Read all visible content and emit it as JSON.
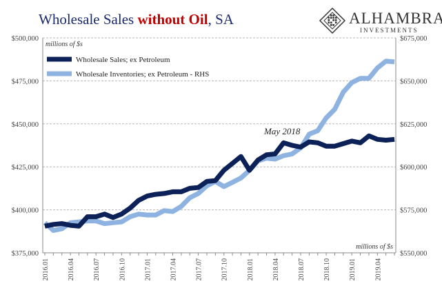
{
  "title": {
    "main_part1": "Wholesale Sales ",
    "accent": "without Oil",
    "main_part2": ", SA"
  },
  "logo": {
    "name": "ALHAMBRA",
    "sub": "INVESTMENTS"
  },
  "chart_data": {
    "type": "line",
    "unit_label_top_left": "millions of $s",
    "unit_label_bottom_right": "millions of $s",
    "annotation": "May 2018",
    "grid": true,
    "legend_placement": "top-left",
    "y_left": {
      "min": 375000,
      "max": 500000,
      "ticks": [
        "$375,000",
        "$400,000",
        "$425,000",
        "$450,000",
        "$475,000",
        "$500,000"
      ]
    },
    "y_right": {
      "min": 550000,
      "max": 675000,
      "ticks": [
        "$550,000",
        "$575,000",
        "$600,000",
        "$625,000",
        "$650,000",
        "$675,000"
      ]
    },
    "x_tick_labels": [
      "2016.01",
      "2016.04",
      "2016.07",
      "2016.10",
      "2017.01",
      "2017.04",
      "2017.07",
      "2017.10",
      "2018.01",
      "2018.04",
      "2018.07",
      "2018.10",
      "2019.01",
      "2019.04"
    ],
    "x": [
      "2016.01",
      "2016.02",
      "2016.03",
      "2016.04",
      "2016.05",
      "2016.06",
      "2016.07",
      "2016.08",
      "2016.09",
      "2016.10",
      "2016.11",
      "2016.12",
      "2017.01",
      "2017.02",
      "2017.03",
      "2017.04",
      "2017.05",
      "2017.06",
      "2017.07",
      "2017.08",
      "2017.09",
      "2017.10",
      "2017.11",
      "2017.12",
      "2018.01",
      "2018.02",
      "2018.03",
      "2018.04",
      "2018.05",
      "2018.06",
      "2018.07",
      "2018.08",
      "2018.09",
      "2018.10",
      "2018.11",
      "2018.12",
      "2019.01",
      "2019.02",
      "2019.03",
      "2019.04",
      "2019.05",
      "2019.06"
    ],
    "series": [
      {
        "name": "Wholesale Sales; ex Petroleum",
        "axis": "left",
        "color": "#0c2157",
        "values": [
          390500,
          391500,
          392000,
          391000,
          390500,
          396000,
          396000,
          397500,
          395500,
          397500,
          401000,
          405500,
          408000,
          409000,
          409500,
          410500,
          410500,
          412500,
          413000,
          416500,
          417000,
          423000,
          427000,
          431000,
          423000,
          429000,
          432000,
          432500,
          439000,
          437500,
          436500,
          439500,
          439000,
          437000,
          437000,
          438500,
          440000,
          439000,
          443000,
          441000,
          440500,
          441000
        ]
      },
      {
        "name": "Wholesale Inventories; ex Petroleum - RHS",
        "axis": "right",
        "color": "#8fb3e0",
        "values": [
          567500,
          563000,
          564000,
          567500,
          568000,
          568500,
          568500,
          567000,
          567500,
          568000,
          571000,
          572500,
          572000,
          572000,
          574500,
          574000,
          577000,
          582000,
          584500,
          589000,
          591500,
          588500,
          591000,
          593500,
          598000,
          603500,
          605000,
          604500,
          606500,
          607500,
          611000,
          619000,
          621000,
          628500,
          633500,
          643500,
          649000,
          651500,
          651500,
          657500,
          661500,
          661000
        ]
      }
    ]
  }
}
